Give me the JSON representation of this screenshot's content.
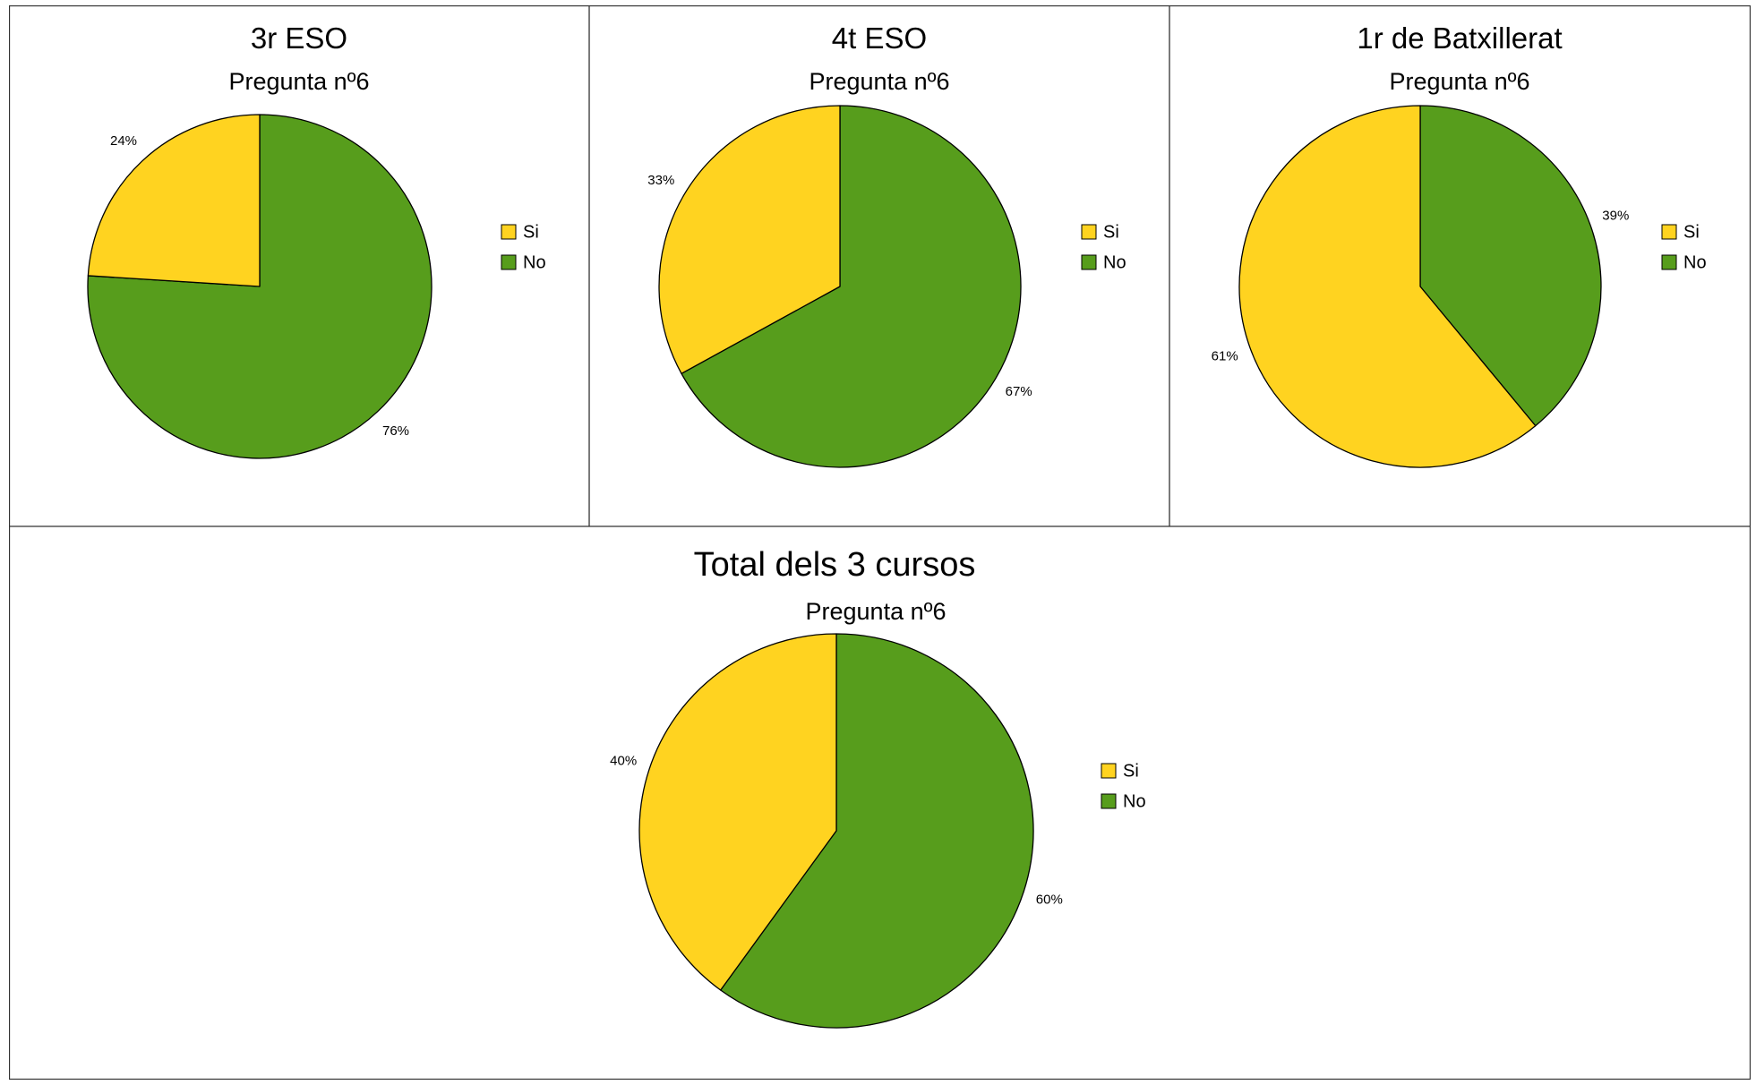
{
  "colors": {
    "si": "#ffd320",
    "no": "#579d1c"
  },
  "chart_data": [
    {
      "type": "pie",
      "title": "3r ESO",
      "subtitle": "Pregunta nº6",
      "categories": [
        "Si",
        "No"
      ],
      "values": [
        24,
        76
      ],
      "labels": [
        "24%",
        "76%"
      ],
      "legend": "right"
    },
    {
      "type": "pie",
      "title": "4t ESO",
      "subtitle": "Pregunta nº6",
      "categories": [
        "Si",
        "No"
      ],
      "values": [
        33,
        67
      ],
      "labels": [
        "33%",
        "67%"
      ],
      "legend": "right"
    },
    {
      "type": "pie",
      "title": "1r de Batxillerat",
      "subtitle": "Pregunta nº6",
      "categories": [
        "Si",
        "No"
      ],
      "values": [
        61,
        39
      ],
      "labels": [
        "61%",
        "39%"
      ],
      "legend": "right"
    },
    {
      "type": "pie",
      "title": "Total dels 3 cursos",
      "subtitle": "Pregunta nº6",
      "categories": [
        "Si",
        "No"
      ],
      "values": [
        40,
        60
      ],
      "labels": [
        "40%",
        "60%"
      ],
      "legend": "right"
    }
  ]
}
